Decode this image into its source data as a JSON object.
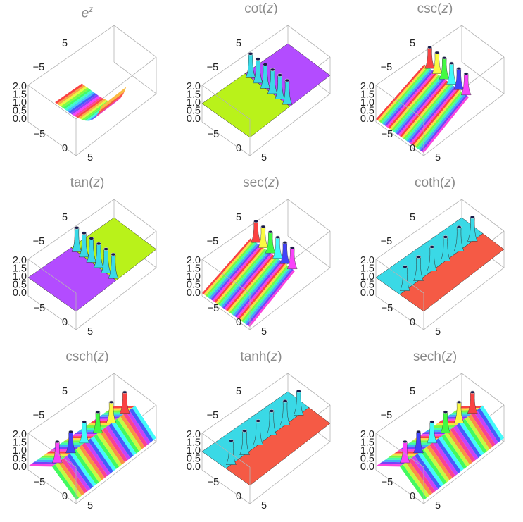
{
  "chart_data": [
    {
      "type": "surface3d",
      "title": {
        "pre": "",
        "main": "e",
        "var": "z",
        "post": ""
      },
      "kind": "exp",
      "ztick_labels": [
        "2.0",
        "1.5",
        "1.0",
        "0.5",
        "0.0"
      ],
      "xtick_labels": [
        "−5",
        "0",
        "5"
      ],
      "ytick_labels": [
        "−5",
        "5"
      ],
      "zlim": [
        0,
        2
      ]
    },
    {
      "type": "surface3d",
      "title": {
        "pre": "cot(",
        "main": "",
        "var": "z",
        "post": ")"
      },
      "kind": "cot",
      "ztick_labels": [
        "2.0",
        "1.5",
        "1.0",
        "0.5",
        "0.0"
      ],
      "xtick_labels": [
        "−5",
        "0",
        "5"
      ],
      "ytick_labels": [
        "−5",
        "5"
      ],
      "zlim": [
        0,
        2
      ]
    },
    {
      "type": "surface3d",
      "title": {
        "pre": "csc(",
        "main": "",
        "var": "z",
        "post": ")"
      },
      "kind": "csc",
      "ztick_labels": [
        "2.0",
        "1.5",
        "1.0",
        "0.5",
        "0.0"
      ],
      "xtick_labels": [
        "−5",
        "0",
        "5"
      ],
      "ytick_labels": [
        "−5",
        "5"
      ],
      "zlim": [
        0,
        2
      ]
    },
    {
      "type": "surface3d",
      "title": {
        "pre": "tan(",
        "main": "",
        "var": "z",
        "post": ")"
      },
      "kind": "tan",
      "ztick_labels": [
        "2.0",
        "1.5",
        "1.0",
        "0.5",
        "0.0"
      ],
      "xtick_labels": [
        "−5",
        "0",
        "5"
      ],
      "ytick_labels": [
        "−5",
        "5"
      ],
      "zlim": [
        0,
        2
      ]
    },
    {
      "type": "surface3d",
      "title": {
        "pre": "sec(",
        "main": "",
        "var": "z",
        "post": ")"
      },
      "kind": "sec",
      "ztick_labels": [
        "2.0",
        "1.5",
        "1.0",
        "0.5",
        "0.0"
      ],
      "xtick_labels": [
        "−5",
        "0",
        "5"
      ],
      "ytick_labels": [
        "−5",
        "5"
      ],
      "zlim": [
        0,
        2
      ]
    },
    {
      "type": "surface3d",
      "title": {
        "pre": "coth(",
        "main": "",
        "var": "z",
        "post": ")"
      },
      "kind": "coth",
      "ztick_labels": [
        "2.0",
        "1.5",
        "1.0",
        "0.5",
        "0.0"
      ],
      "xtick_labels": [
        "−5",
        "0",
        "5"
      ],
      "ytick_labels": [
        "−5",
        "5"
      ],
      "zlim": [
        0,
        2
      ]
    },
    {
      "type": "surface3d",
      "title": {
        "pre": "csch(",
        "main": "",
        "var": "z",
        "post": ")"
      },
      "kind": "csch",
      "ztick_labels": [
        "2.0",
        "1.5",
        "1.0",
        "0.5",
        "0.0"
      ],
      "xtick_labels": [
        "−5",
        "0",
        "5"
      ],
      "ytick_labels": [
        "−5",
        "5"
      ],
      "zlim": [
        0,
        2
      ]
    },
    {
      "type": "surface3d",
      "title": {
        "pre": "tanh(",
        "main": "",
        "var": "z",
        "post": ")"
      },
      "kind": "tanh",
      "ztick_labels": [
        "2.0",
        "1.5",
        "1.0",
        "0.5",
        "0.0"
      ],
      "xtick_labels": [
        "−5",
        "0",
        "5"
      ],
      "ytick_labels": [
        "−5",
        "5"
      ],
      "zlim": [
        0,
        2
      ]
    },
    {
      "type": "surface3d",
      "title": {
        "pre": "sech(",
        "main": "",
        "var": "z",
        "post": ")"
      },
      "kind": "sech",
      "ztick_labels": [
        "2.0",
        "1.5",
        "1.0",
        "0.5",
        "0.0"
      ],
      "xtick_labels": [
        "−5",
        "0",
        "5"
      ],
      "ytick_labels": [
        "−5",
        "5"
      ],
      "zlim": [
        0,
        2
      ]
    }
  ],
  "colors": {
    "box": "#b4b4b4",
    "text": "#222222",
    "title": "#8a8a8a",
    "purple": "#b34cff",
    "lime": "#b9f21a",
    "cyan": "#3ad9e6",
    "red": "#f55a45"
  }
}
